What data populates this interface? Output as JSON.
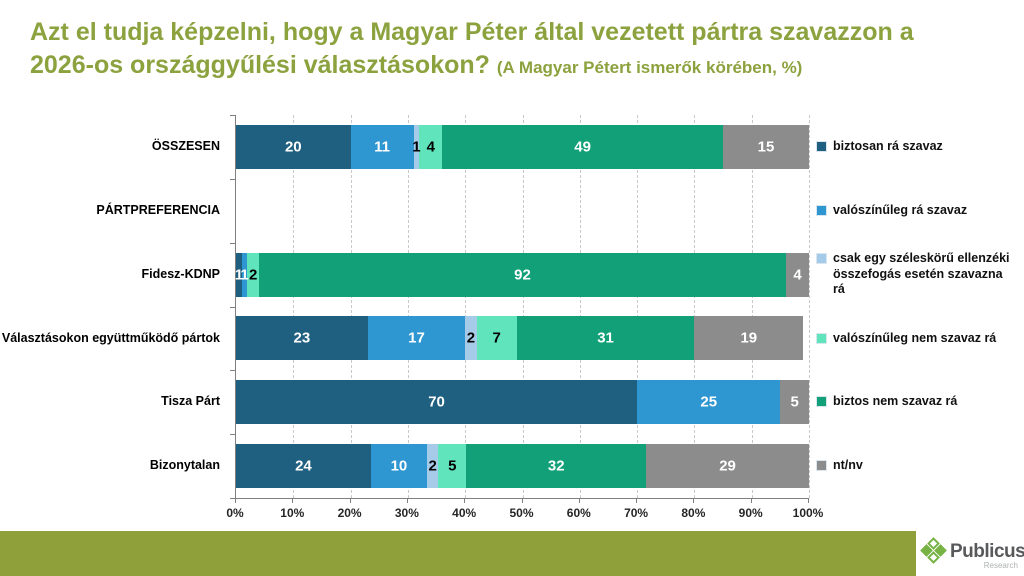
{
  "header": {
    "title_line1": "Azt el tudja képzelni, hogy a Magyar Péter által vezetett pártra szavazzon a",
    "title_line2": "2026-os országgyűlési választásokon?",
    "subtitle": "(A Magyar Pétert ismerők körében, %)",
    "title_color": "#8ca23e"
  },
  "chart_data": {
    "type": "bar",
    "orientation": "horizontal",
    "stacked": true,
    "title": "Azt el tudja képzelni, hogy a Magyar Péter által vezetett pártra szavazzon a 2026-os országgyűlési választásokon? (A Magyar Pétert ismerők körében, %)",
    "xlabel": "",
    "ylabel": "",
    "xlim": [
      0,
      100
    ],
    "x_ticks": [
      "0%",
      "10%",
      "20%",
      "30%",
      "40%",
      "50%",
      "60%",
      "70%",
      "80%",
      "90%",
      "100%"
    ],
    "grid": "vertical-dashed",
    "legend_position": "right",
    "series": [
      {
        "name": "biztosan rá szavaz",
        "color": "#1f5f7f",
        "label_color": "#ffffff"
      },
      {
        "name": "valószínűleg rá szavaz",
        "color": "#2e96d1",
        "label_color": "#ffffff"
      },
      {
        "name": "csak egy széleskörű ellenzéki összefogás esetén szavazna rá",
        "color": "#a5cbe9",
        "label_color": "#000000"
      },
      {
        "name": "valószínűleg nem szavaz rá",
        "color": "#5fe4bc",
        "label_color": "#000000"
      },
      {
        "name": "biztos nem szavaz rá",
        "color": "#12a078",
        "label_color": "#ffffff"
      },
      {
        "name": "nt/nv",
        "color": "#8c8c8c",
        "label_color": "#ffffff"
      }
    ],
    "categories": [
      {
        "label": "ÖSSZESEN",
        "values": [
          20,
          11,
          1,
          4,
          49,
          15
        ]
      },
      {
        "label": "PÁRTPREFERENCIA",
        "values": []
      },
      {
        "label": "Fidesz-KDNP",
        "values": [
          1,
          1,
          0,
          2,
          92,
          4
        ]
      },
      {
        "label": "Választásokon együttműködő pártok",
        "values": [
          23,
          17,
          2,
          7,
          31,
          19
        ]
      },
      {
        "label": "Tisza Párt",
        "values": [
          70,
          25,
          0,
          0,
          0,
          5
        ]
      },
      {
        "label": "Bizonytalan",
        "values": [
          24,
          10,
          2,
          5,
          32,
          29
        ]
      }
    ]
  },
  "footer": {
    "band_color": "#8fa03b",
    "logo": {
      "brand": "Publicus",
      "sub": "Research",
      "diamond_color": "#76b244"
    }
  }
}
